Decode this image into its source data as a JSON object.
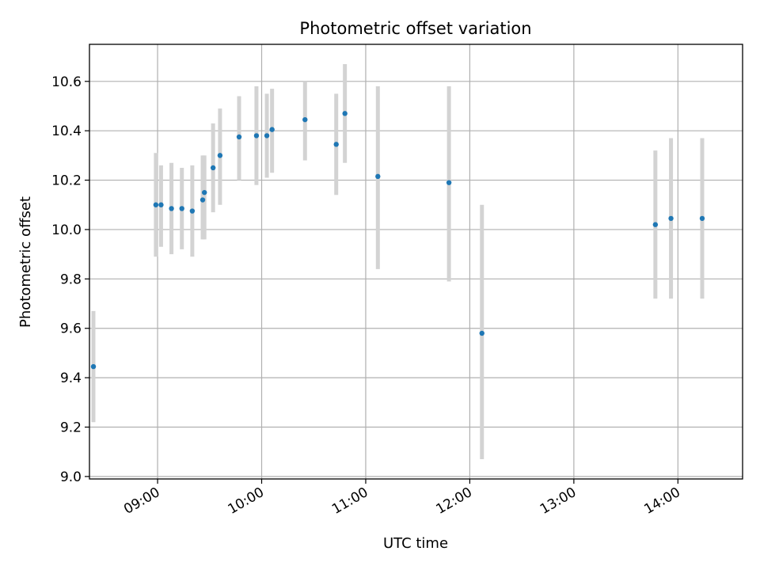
{
  "chart_data": {
    "type": "scatter",
    "title": "Photometric offset variation",
    "xlabel": "UTC time",
    "ylabel": "Photometric offset",
    "x_axis_format": "HH:MM",
    "x_range": [
      "08:23",
      "14:35"
    ],
    "ylim": [
      8.99,
      10.75
    ],
    "grid": true,
    "x_ticks": [
      "09:00",
      "10:00",
      "11:00",
      "12:00",
      "13:00",
      "14:00"
    ],
    "y_ticks": [
      9.0,
      9.2,
      9.4,
      9.6,
      9.8,
      10.0,
      10.2,
      10.4,
      10.6
    ],
    "y_tick_labels": [
      "9.0",
      "9.2",
      "9.4",
      "9.6",
      "9.8",
      "10.0",
      "10.2",
      "10.4",
      "10.6"
    ],
    "colors": {
      "marker": "#1f77b4",
      "errorbar": "#d3d3d3",
      "grid": "#b0b0b0"
    },
    "points": [
      {
        "time": "08:23",
        "y": 9.445,
        "y_err_low": 9.22,
        "y_err_high": 9.67
      },
      {
        "time": "08:59",
        "y": 10.1,
        "y_err_low": 9.89,
        "y_err_high": 10.31
      },
      {
        "time": "09:02",
        "y": 10.1,
        "y_err_low": 9.93,
        "y_err_high": 10.26
      },
      {
        "time": "09:08",
        "y": 10.085,
        "y_err_low": 9.9,
        "y_err_high": 10.27
      },
      {
        "time": "09:14",
        "y": 10.085,
        "y_err_low": 9.92,
        "y_err_high": 10.25
      },
      {
        "time": "09:20",
        "y": 10.075,
        "y_err_low": 9.89,
        "y_err_high": 10.26
      },
      {
        "time": "09:26",
        "y": 10.12,
        "y_err_low": 9.96,
        "y_err_high": 10.3
      },
      {
        "time": "09:27",
        "y": 10.15,
        "y_err_low": 9.96,
        "y_err_high": 10.3
      },
      {
        "time": "09:32",
        "y": 10.25,
        "y_err_low": 10.07,
        "y_err_high": 10.43
      },
      {
        "time": "09:36",
        "y": 10.3,
        "y_err_low": 10.1,
        "y_err_high": 10.49
      },
      {
        "time": "09:47",
        "y": 10.375,
        "y_err_low": 10.2,
        "y_err_high": 10.54
      },
      {
        "time": "09:57",
        "y": 10.38,
        "y_err_low": 10.18,
        "y_err_high": 10.58
      },
      {
        "time": "10:03",
        "y": 10.38,
        "y_err_low": 10.21,
        "y_err_high": 10.55
      },
      {
        "time": "10:06",
        "y": 10.405,
        "y_err_low": 10.23,
        "y_err_high": 10.57
      },
      {
        "time": "10:25",
        "y": 10.445,
        "y_err_low": 10.28,
        "y_err_high": 10.6
      },
      {
        "time": "10:43",
        "y": 10.345,
        "y_err_low": 10.14,
        "y_err_high": 10.55
      },
      {
        "time": "10:48",
        "y": 10.47,
        "y_err_low": 10.27,
        "y_err_high": 10.67
      },
      {
        "time": "11:07",
        "y": 10.215,
        "y_err_low": 9.84,
        "y_err_high": 10.58
      },
      {
        "time": "11:48",
        "y": 10.19,
        "y_err_low": 9.79,
        "y_err_high": 10.58
      },
      {
        "time": "12:07",
        "y": 9.58,
        "y_err_low": 9.07,
        "y_err_high": 10.1
      },
      {
        "time": "13:47",
        "y": 10.02,
        "y_err_low": 9.72,
        "y_err_high": 10.32
      },
      {
        "time": "13:56",
        "y": 10.045,
        "y_err_low": 9.72,
        "y_err_high": 10.37
      },
      {
        "time": "14:14",
        "y": 10.045,
        "y_err_low": 9.72,
        "y_err_high": 10.37
      }
    ]
  }
}
